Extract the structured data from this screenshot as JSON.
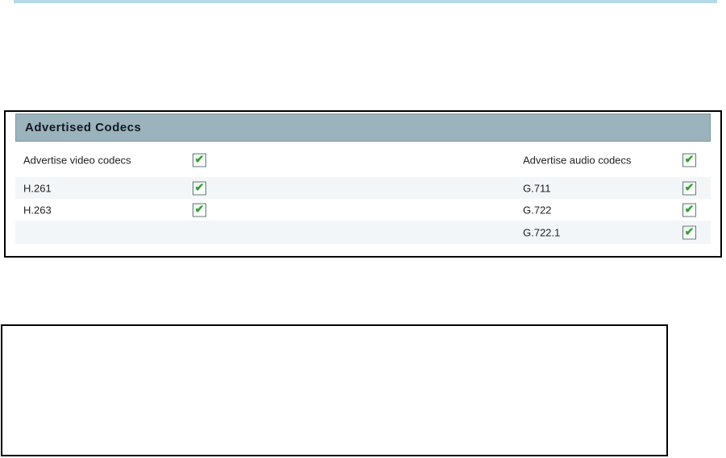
{
  "page": {
    "background_color": "#ffffff",
    "top_rule_color": "#b3dae5"
  },
  "icons": {
    "checkbox_check": "✔"
  },
  "panel": {
    "title": "Advertised Codecs",
    "header_bg_color": "#9ab3bc",
    "row_stripe_color": "#f3f6f9",
    "checkbox_check_color": "#2fa32f",
    "rows": [
      {
        "left": {
          "label": "Advertise video codecs",
          "checked": true
        },
        "right": {
          "label": "Advertise audio codecs",
          "checked": true
        }
      },
      {
        "left": {
          "label": "H.261",
          "checked": true
        },
        "right": {
          "label": "G.711",
          "checked": true
        }
      },
      {
        "left": {
          "label": "H.263",
          "checked": true
        },
        "right": {
          "label": "G.722",
          "checked": true
        }
      },
      {
        "left": null,
        "right": {
          "label": "G.722.1",
          "checked": true
        }
      }
    ]
  },
  "empty_box": {
    "content": ""
  }
}
